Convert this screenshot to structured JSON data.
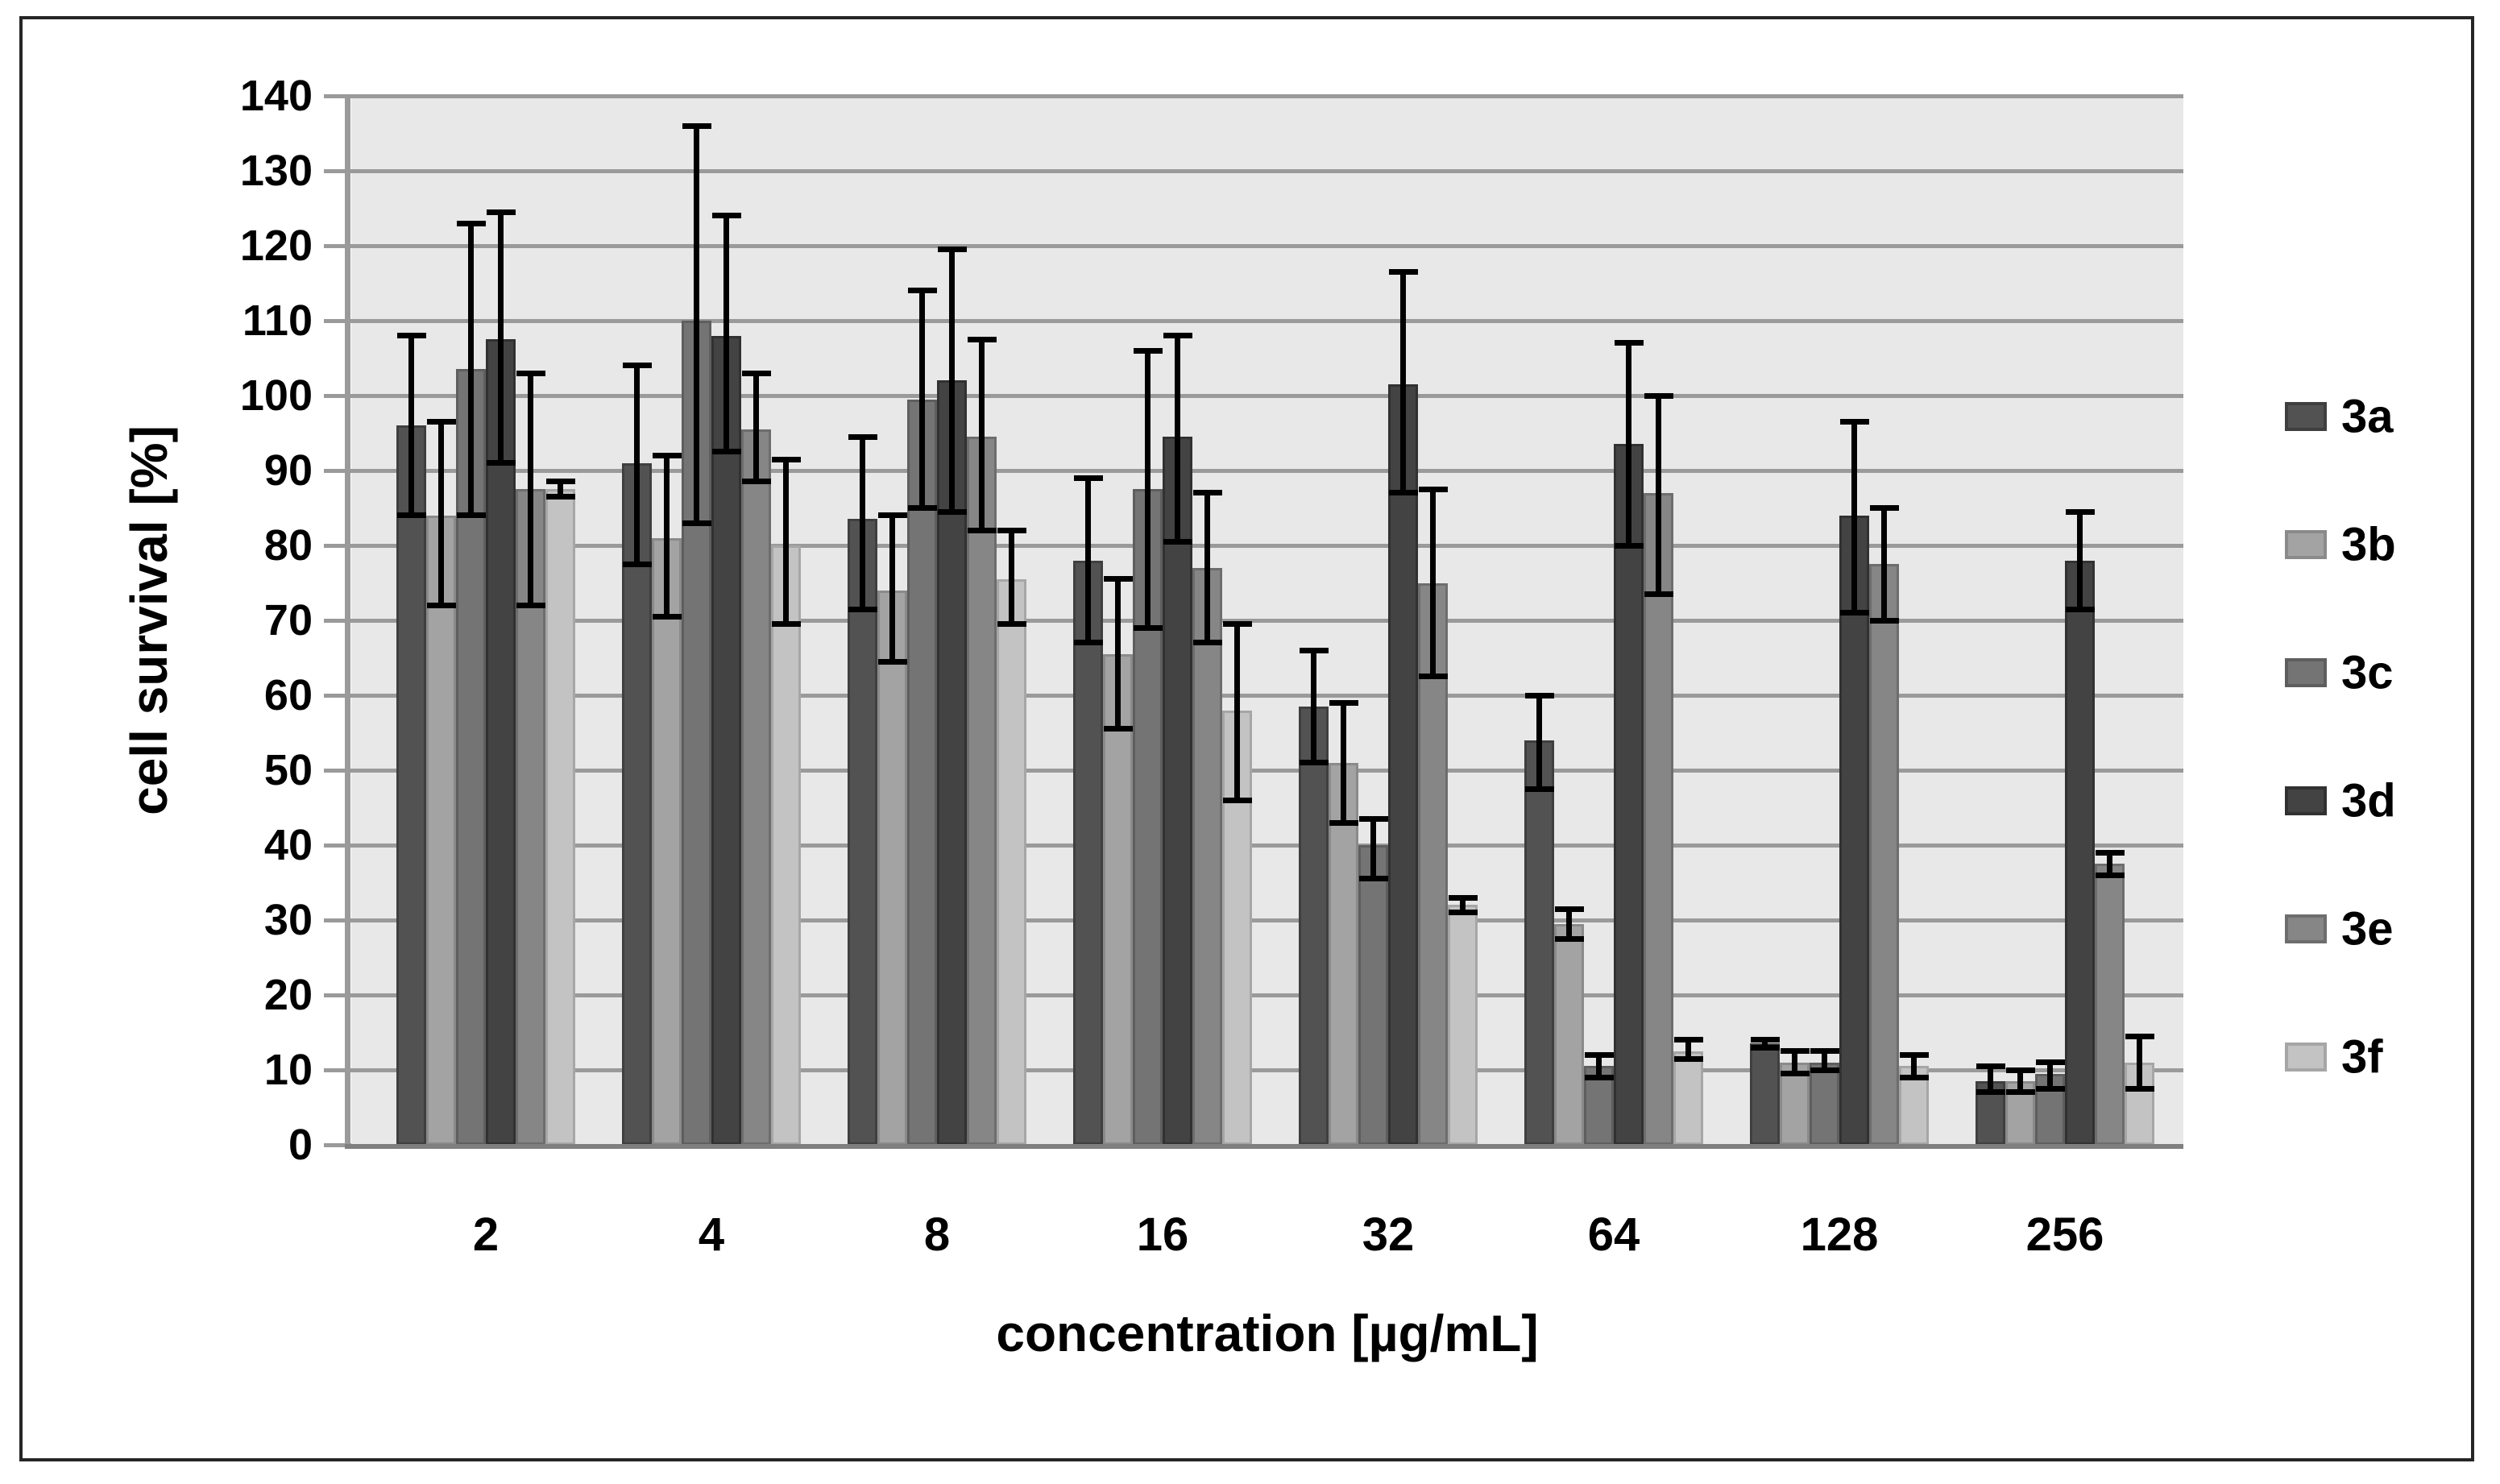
{
  "figure": {
    "background": "#ffffff",
    "frame_border_color": "#262626",
    "plot_background": "#e8e8e8",
    "gridline_color": "#9a9a9a",
    "axis_line_color": "#7f7f7f"
  },
  "chart_data": {
    "type": "bar",
    "title": "",
    "xlabel": "concentration [µg/mL]",
    "ylabel": "cell survival [%]",
    "ylim": [
      0,
      140
    ],
    "ytick_step": 10,
    "yticks": [
      "0",
      "10",
      "20",
      "30",
      "40",
      "50",
      "60",
      "70",
      "80",
      "90",
      "100",
      "110",
      "120",
      "130",
      "140"
    ],
    "grid": true,
    "error_bars": true,
    "error_bar_color": "#000000",
    "legend_position": "right",
    "categories": [
      "2",
      "4",
      "8",
      "16",
      "32",
      "64",
      "128",
      "256"
    ],
    "series": [
      {
        "name": "3a",
        "color": "#525252",
        "border": "#3f3f3f",
        "values": [
          96,
          91,
          83.5,
          78,
          58.5,
          54,
          13.5,
          8.5
        ],
        "err_low": [
          84,
          77.5,
          71.5,
          67,
          51,
          47.5,
          13,
          7
        ],
        "err_high": [
          108,
          104,
          94.5,
          89,
          66,
          60,
          14,
          10.5
        ]
      },
      {
        "name": "3b",
        "color": "#a3a3a3",
        "border": "#8a8a8a",
        "values": [
          84,
          81,
          74,
          65.5,
          51,
          29.5,
          11,
          8.5
        ],
        "err_low": [
          72,
          70.5,
          64.5,
          55.5,
          43,
          27.5,
          9.5,
          7
        ],
        "err_high": [
          96.5,
          92,
          84,
          75.5,
          59,
          31.5,
          12.5,
          10
        ]
      },
      {
        "name": "3c",
        "color": "#747474",
        "border": "#5e5e5e",
        "values": [
          103.5,
          110,
          99.5,
          87.5,
          40,
          10.5,
          11,
          9.5
        ],
        "err_low": [
          84,
          83,
          85,
          69,
          35.5,
          9,
          10,
          7.5
        ],
        "err_high": [
          123,
          136,
          114,
          106,
          43.5,
          12,
          12.5,
          11
        ]
      },
      {
        "name": "3d",
        "color": "#434343",
        "border": "#313131",
        "values": [
          107.5,
          108,
          102,
          94.5,
          101.5,
          93.5,
          84,
          78
        ],
        "err_low": [
          91,
          92.5,
          84.5,
          80.5,
          87,
          80,
          71,
          71.5
        ],
        "err_high": [
          124.5,
          124,
          119.5,
          108,
          116.5,
          107,
          96.5,
          84.5
        ]
      },
      {
        "name": "3e",
        "color": "#868686",
        "border": "#6d6d6d",
        "values": [
          87.5,
          95.5,
          94.5,
          77,
          75,
          87,
          77.5,
          37.5
        ],
        "err_low": [
          72,
          88.5,
          82,
          67,
          62.5,
          73.5,
          70,
          36
        ],
        "err_high": [
          103,
          103,
          107.5,
          87,
          87.5,
          100,
          85,
          39
        ]
      },
      {
        "name": "3f",
        "color": "#c3c3c3",
        "border": "#a6a6a6",
        "values": [
          87.5,
          80,
          75.5,
          58,
          32,
          12.5,
          10.5,
          11
        ],
        "err_low": [
          86.5,
          69.5,
          69.5,
          46,
          31,
          11.5,
          9,
          7.5
        ],
        "err_high": [
          88.5,
          91.5,
          82,
          69.5,
          33,
          14,
          12,
          14.5
        ]
      }
    ]
  }
}
